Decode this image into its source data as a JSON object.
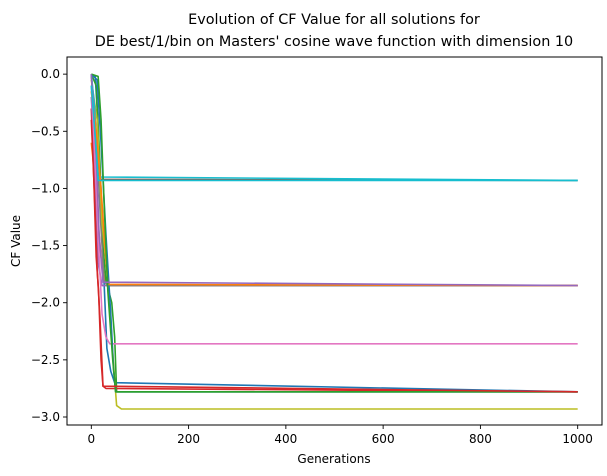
{
  "chart_data": {
    "type": "line",
    "title_line1": "Evolution of CF Value for all solutions for",
    "title_line2": "DE best/1/bin on Masters' cosine wave function with dimension 10",
    "xlabel": "Generations",
    "ylabel": "CF Value",
    "xlim": [
      -50,
      1050
    ],
    "ylim": [
      -3.07,
      0.15
    ],
    "xticks": [
      0,
      200,
      400,
      600,
      800,
      1000
    ],
    "xtick_labels": [
      "0",
      "200",
      "400",
      "600",
      "800",
      "1000"
    ],
    "yticks": [
      0.0,
      -0.5,
      -1.0,
      -1.5,
      -2.0,
      -2.5,
      -3.0
    ],
    "ytick_labels": [
      "0.0",
      "−0.5",
      "−1.0",
      "−1.5",
      "−2.0",
      "−2.5",
      "−3.0"
    ],
    "grid": false,
    "legend": "none",
    "series": [
      {
        "color": "#1f77b4",
        "points": [
          [
            0,
            0
          ],
          [
            8,
            -0.02
          ],
          [
            12,
            -0.3
          ],
          [
            18,
            -0.9
          ],
          [
            25,
            -1.7
          ],
          [
            32,
            -2.4
          ],
          [
            40,
            -2.6
          ],
          [
            48,
            -2.7
          ],
          [
            1000,
            -2.78
          ]
        ]
      },
      {
        "color": "#ff7f0e",
        "points": [
          [
            0,
            -0.6
          ],
          [
            6,
            -0.85
          ],
          [
            12,
            -1.2
          ],
          [
            20,
            -1.6
          ],
          [
            28,
            -1.8
          ],
          [
            35,
            -1.85
          ],
          [
            1000,
            -1.85
          ]
        ]
      },
      {
        "color": "#2ca02c",
        "points": [
          [
            0,
            0
          ],
          [
            10,
            -0.1
          ],
          [
            18,
            -0.8
          ],
          [
            24,
            -1.5
          ],
          [
            30,
            -1.8
          ],
          [
            42,
            -2.0
          ],
          [
            48,
            -2.3
          ],
          [
            52,
            -2.78
          ],
          [
            1000,
            -2.78
          ]
        ]
      },
      {
        "color": "#d62728",
        "points": [
          [
            0,
            -0.3
          ],
          [
            5,
            -0.9
          ],
          [
            10,
            -1.6
          ],
          [
            15,
            -1.9
          ],
          [
            20,
            -2.5
          ],
          [
            24,
            -2.73
          ],
          [
            30,
            -2.75
          ],
          [
            1000,
            -2.78
          ]
        ]
      },
      {
        "color": "#9467bd",
        "points": [
          [
            0,
            -0.2
          ],
          [
            5,
            -0.6
          ],
          [
            9,
            -1.2
          ],
          [
            14,
            -1.65
          ],
          [
            22,
            -1.85
          ],
          [
            1000,
            -1.85
          ]
        ]
      },
      {
        "color": "#8c564b",
        "points": [
          [
            0,
            0
          ],
          [
            6,
            -0.4
          ],
          [
            10,
            -0.92
          ],
          [
            1000,
            -0.93
          ]
        ]
      },
      {
        "color": "#e377c2",
        "points": [
          [
            0,
            -0.1
          ],
          [
            8,
            -0.8
          ],
          [
            15,
            -1.5
          ],
          [
            22,
            -2.1
          ],
          [
            30,
            -2.3
          ],
          [
            38,
            -2.36
          ],
          [
            1000,
            -2.36
          ]
        ]
      },
      {
        "color": "#7f7f7f",
        "points": [
          [
            0,
            0
          ],
          [
            10,
            -0.5
          ],
          [
            18,
            -1.2
          ],
          [
            26,
            -1.8
          ],
          [
            32,
            -1.85
          ],
          [
            1000,
            -1.85
          ]
        ]
      },
      {
        "color": "#bcbd22",
        "points": [
          [
            0,
            -0.05
          ],
          [
            12,
            -0.4
          ],
          [
            22,
            -1.3
          ],
          [
            35,
            -1.85
          ],
          [
            45,
            -2.5
          ],
          [
            52,
            -2.9
          ],
          [
            62,
            -2.93
          ],
          [
            1000,
            -2.93
          ]
        ]
      },
      {
        "color": "#17becf",
        "points": [
          [
            0,
            0
          ],
          [
            7,
            -0.3
          ],
          [
            13,
            -0.9
          ],
          [
            1000,
            -0.93
          ]
        ]
      },
      {
        "color": "#1f77b4",
        "points": [
          [
            0,
            0
          ],
          [
            12,
            -0.05
          ],
          [
            20,
            -0.6
          ],
          [
            30,
            -1.4
          ],
          [
            40,
            -2.1
          ],
          [
            46,
            -2.6
          ],
          [
            50,
            -2.78
          ],
          [
            1000,
            -2.78
          ]
        ]
      },
      {
        "color": "#ff7f0e",
        "points": [
          [
            0,
            -0.15
          ],
          [
            10,
            -0.5
          ],
          [
            20,
            -1.0
          ],
          [
            28,
            -1.5
          ],
          [
            34,
            -1.84
          ],
          [
            1000,
            -1.85
          ]
        ]
      },
      {
        "color": "#2ca02c",
        "points": [
          [
            0,
            0
          ],
          [
            14,
            -0.02
          ],
          [
            20,
            -0.4
          ],
          [
            26,
            -1.1
          ],
          [
            34,
            -1.9
          ],
          [
            44,
            -2.5
          ],
          [
            50,
            -2.78
          ],
          [
            1000,
            -2.78
          ]
        ]
      },
      {
        "color": "#d62728",
        "points": [
          [
            0,
            -0.4
          ],
          [
            6,
            -1.0
          ],
          [
            12,
            -1.7
          ],
          [
            18,
            -2.15
          ],
          [
            24,
            -2.73
          ],
          [
            1000,
            -2.78
          ]
        ]
      },
      {
        "color": "#9467bd",
        "points": [
          [
            0,
            0
          ],
          [
            10,
            -0.7
          ],
          [
            16,
            -1.4
          ],
          [
            24,
            -1.82
          ],
          [
            1000,
            -1.85
          ]
        ]
      },
      {
        "color": "#17becf",
        "points": [
          [
            0,
            -0.1
          ],
          [
            9,
            -0.6
          ],
          [
            14,
            -0.93
          ],
          [
            1000,
            -0.93
          ]
        ]
      }
    ]
  }
}
